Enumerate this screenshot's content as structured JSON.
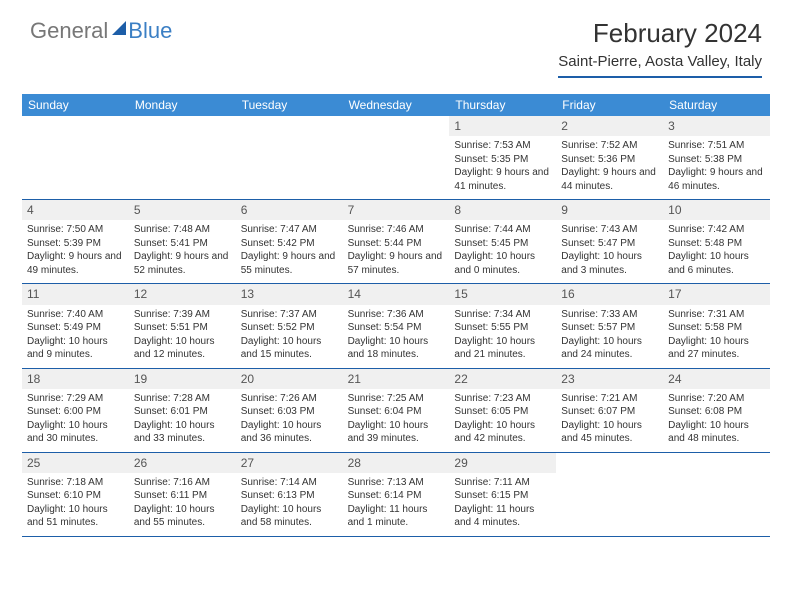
{
  "logo": {
    "text_general": "General",
    "text_blue": "Blue"
  },
  "title": "February 2024",
  "location": "Saint-Pierre, Aosta Valley, Italy",
  "weekdays": [
    "Sunday",
    "Monday",
    "Tuesday",
    "Wednesday",
    "Thursday",
    "Friday",
    "Saturday"
  ],
  "styling": {
    "header_bg": "#3b8bd4",
    "header_text": "#ffffff",
    "border_color": "#1d5ea8",
    "daynum_bg": "#f0f0f0",
    "body_text": "#333333",
    "cell_font_size": 10,
    "daynum_font_size": 12,
    "weekday_font_size": 12,
    "title_font_size": 26,
    "location_font_size": 15
  },
  "weeks": [
    [
      null,
      null,
      null,
      null,
      {
        "num": "1",
        "sunrise": "Sunrise: 7:53 AM",
        "sunset": "Sunset: 5:35 PM",
        "daylight": "Daylight: 9 hours and 41 minutes."
      },
      {
        "num": "2",
        "sunrise": "Sunrise: 7:52 AM",
        "sunset": "Sunset: 5:36 PM",
        "daylight": "Daylight: 9 hours and 44 minutes."
      },
      {
        "num": "3",
        "sunrise": "Sunrise: 7:51 AM",
        "sunset": "Sunset: 5:38 PM",
        "daylight": "Daylight: 9 hours and 46 minutes."
      }
    ],
    [
      {
        "num": "4",
        "sunrise": "Sunrise: 7:50 AM",
        "sunset": "Sunset: 5:39 PM",
        "daylight": "Daylight: 9 hours and 49 minutes."
      },
      {
        "num": "5",
        "sunrise": "Sunrise: 7:48 AM",
        "sunset": "Sunset: 5:41 PM",
        "daylight": "Daylight: 9 hours and 52 minutes."
      },
      {
        "num": "6",
        "sunrise": "Sunrise: 7:47 AM",
        "sunset": "Sunset: 5:42 PM",
        "daylight": "Daylight: 9 hours and 55 minutes."
      },
      {
        "num": "7",
        "sunrise": "Sunrise: 7:46 AM",
        "sunset": "Sunset: 5:44 PM",
        "daylight": "Daylight: 9 hours and 57 minutes."
      },
      {
        "num": "8",
        "sunrise": "Sunrise: 7:44 AM",
        "sunset": "Sunset: 5:45 PM",
        "daylight": "Daylight: 10 hours and 0 minutes."
      },
      {
        "num": "9",
        "sunrise": "Sunrise: 7:43 AM",
        "sunset": "Sunset: 5:47 PM",
        "daylight": "Daylight: 10 hours and 3 minutes."
      },
      {
        "num": "10",
        "sunrise": "Sunrise: 7:42 AM",
        "sunset": "Sunset: 5:48 PM",
        "daylight": "Daylight: 10 hours and 6 minutes."
      }
    ],
    [
      {
        "num": "11",
        "sunrise": "Sunrise: 7:40 AM",
        "sunset": "Sunset: 5:49 PM",
        "daylight": "Daylight: 10 hours and 9 minutes."
      },
      {
        "num": "12",
        "sunrise": "Sunrise: 7:39 AM",
        "sunset": "Sunset: 5:51 PM",
        "daylight": "Daylight: 10 hours and 12 minutes."
      },
      {
        "num": "13",
        "sunrise": "Sunrise: 7:37 AM",
        "sunset": "Sunset: 5:52 PM",
        "daylight": "Daylight: 10 hours and 15 minutes."
      },
      {
        "num": "14",
        "sunrise": "Sunrise: 7:36 AM",
        "sunset": "Sunset: 5:54 PM",
        "daylight": "Daylight: 10 hours and 18 minutes."
      },
      {
        "num": "15",
        "sunrise": "Sunrise: 7:34 AM",
        "sunset": "Sunset: 5:55 PM",
        "daylight": "Daylight: 10 hours and 21 minutes."
      },
      {
        "num": "16",
        "sunrise": "Sunrise: 7:33 AM",
        "sunset": "Sunset: 5:57 PM",
        "daylight": "Daylight: 10 hours and 24 minutes."
      },
      {
        "num": "17",
        "sunrise": "Sunrise: 7:31 AM",
        "sunset": "Sunset: 5:58 PM",
        "daylight": "Daylight: 10 hours and 27 minutes."
      }
    ],
    [
      {
        "num": "18",
        "sunrise": "Sunrise: 7:29 AM",
        "sunset": "Sunset: 6:00 PM",
        "daylight": "Daylight: 10 hours and 30 minutes."
      },
      {
        "num": "19",
        "sunrise": "Sunrise: 7:28 AM",
        "sunset": "Sunset: 6:01 PM",
        "daylight": "Daylight: 10 hours and 33 minutes."
      },
      {
        "num": "20",
        "sunrise": "Sunrise: 7:26 AM",
        "sunset": "Sunset: 6:03 PM",
        "daylight": "Daylight: 10 hours and 36 minutes."
      },
      {
        "num": "21",
        "sunrise": "Sunrise: 7:25 AM",
        "sunset": "Sunset: 6:04 PM",
        "daylight": "Daylight: 10 hours and 39 minutes."
      },
      {
        "num": "22",
        "sunrise": "Sunrise: 7:23 AM",
        "sunset": "Sunset: 6:05 PM",
        "daylight": "Daylight: 10 hours and 42 minutes."
      },
      {
        "num": "23",
        "sunrise": "Sunrise: 7:21 AM",
        "sunset": "Sunset: 6:07 PM",
        "daylight": "Daylight: 10 hours and 45 minutes."
      },
      {
        "num": "24",
        "sunrise": "Sunrise: 7:20 AM",
        "sunset": "Sunset: 6:08 PM",
        "daylight": "Daylight: 10 hours and 48 minutes."
      }
    ],
    [
      {
        "num": "25",
        "sunrise": "Sunrise: 7:18 AM",
        "sunset": "Sunset: 6:10 PM",
        "daylight": "Daylight: 10 hours and 51 minutes."
      },
      {
        "num": "26",
        "sunrise": "Sunrise: 7:16 AM",
        "sunset": "Sunset: 6:11 PM",
        "daylight": "Daylight: 10 hours and 55 minutes."
      },
      {
        "num": "27",
        "sunrise": "Sunrise: 7:14 AM",
        "sunset": "Sunset: 6:13 PM",
        "daylight": "Daylight: 10 hours and 58 minutes."
      },
      {
        "num": "28",
        "sunrise": "Sunrise: 7:13 AM",
        "sunset": "Sunset: 6:14 PM",
        "daylight": "Daylight: 11 hours and 1 minute."
      },
      {
        "num": "29",
        "sunrise": "Sunrise: 7:11 AM",
        "sunset": "Sunset: 6:15 PM",
        "daylight": "Daylight: 11 hours and 4 minutes."
      },
      null,
      null
    ]
  ]
}
